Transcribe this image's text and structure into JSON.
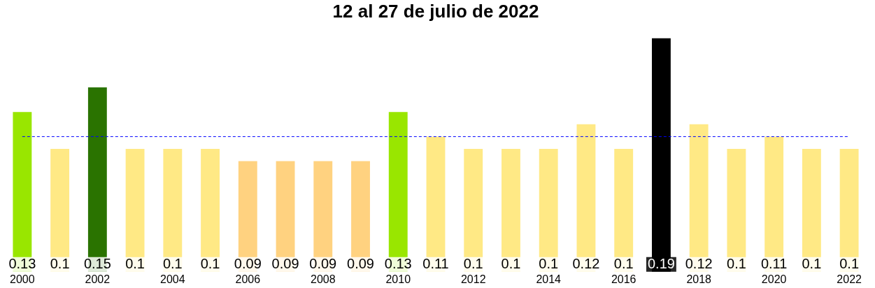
{
  "chart_data": {
    "type": "bar",
    "title": "12 al 27 de julio de 2022",
    "categories": [
      "2000",
      null,
      "2002",
      null,
      "2004",
      null,
      "2006",
      null,
      "2008",
      null,
      "2010",
      null,
      "2012",
      null,
      "2014",
      null,
      "2016",
      null,
      "2018",
      null,
      "2020",
      null,
      "2022"
    ],
    "values": [
      0.13,
      0.1,
      0.15,
      0.1,
      0.1,
      0.1,
      0.09,
      0.09,
      0.09,
      0.09,
      0.13,
      0.11,
      0.1,
      0.1,
      0.1,
      0.12,
      0.1,
      0.19,
      0.12,
      0.1,
      0.11,
      0.1,
      0.1
    ],
    "colors": [
      "#99e600",
      "#ffe985",
      "#2a7300",
      "#ffe985",
      "#ffe985",
      "#ffe985",
      "#ffd280",
      "#ffd280",
      "#ffd280",
      "#ffd280",
      "#99e600",
      "#ffe985",
      "#ffe985",
      "#ffe985",
      "#ffe985",
      "#ffe985",
      "#ffe985",
      "#000000",
      "#ffe985",
      "#ffe985",
      "#ffe985",
      "#ffe985",
      "#ffe985"
    ],
    "data_labels": true,
    "ref_lines": [
      {
        "axis": "y",
        "value": 0.11,
        "color": "#0000ff",
        "line_style": "dashed"
      }
    ],
    "grid": false,
    "legend": false
  }
}
